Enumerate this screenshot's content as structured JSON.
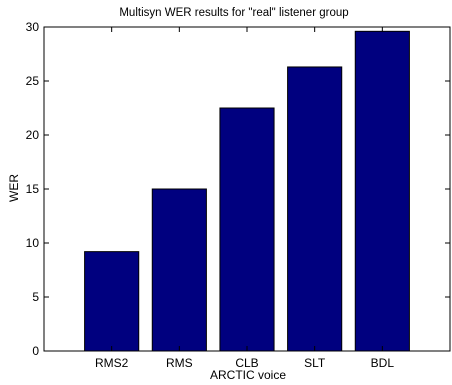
{
  "chart_data": {
    "type": "bar",
    "title": "Multisyn WER results for \"real\" listener group",
    "xlabel": "ARCTIC voice",
    "ylabel": "WER",
    "categories": [
      "RMS2",
      "RMS",
      "CLB",
      "SLT",
      "BDL"
    ],
    "values": [
      9.2,
      15.0,
      22.5,
      26.3,
      29.6
    ],
    "ylim": [
      0,
      30
    ],
    "yticks": [
      0,
      5,
      10,
      15,
      20,
      25,
      30
    ],
    "grid": false,
    "bar_color": "#00007f"
  }
}
